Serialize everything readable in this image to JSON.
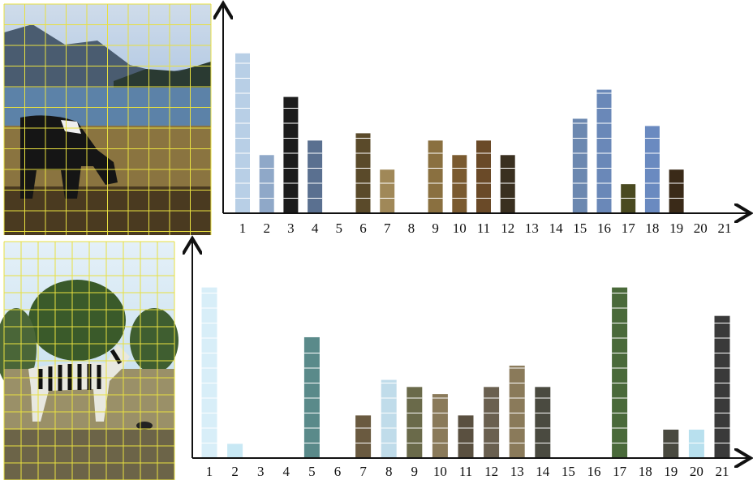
{
  "chart_data": [
    {
      "type": "bar",
      "categories": [
        "1",
        "2",
        "3",
        "4",
        "5",
        "6",
        "7",
        "8",
        "9",
        "10",
        "11",
        "12",
        "13",
        "14",
        "15",
        "16",
        "17",
        "18",
        "19",
        "20",
        "21"
      ],
      "values": [
        11,
        4,
        8,
        5,
        0,
        5.5,
        3,
        0,
        5,
        4,
        5,
        4,
        0,
        0,
        6.5,
        8.5,
        2,
        6,
        3,
        0,
        0
      ],
      "colors": [
        "#b8cfe6",
        "#8fa8c8",
        "#1c1c1c",
        "#5a7090",
        "#888888",
        "#5a4a2a",
        "#a08858",
        "#888888",
        "#8a7040",
        "#7a5a30",
        "#6a4a28",
        "#3a3020",
        "#888888",
        "#888888",
        "#6c88b0",
        "#6a88b8",
        "#4a4a20",
        "#6a8ac0",
        "#3a2a18",
        "#888888",
        "#888888"
      ],
      "ylim": [
        0,
        14
      ]
    },
    {
      "type": "bar",
      "categories": [
        "1",
        "2",
        "3",
        "4",
        "5",
        "6",
        "7",
        "8",
        "9",
        "10",
        "11",
        "12",
        "13",
        "14",
        "15",
        "16",
        "17",
        "18",
        "19",
        "20",
        "21"
      ],
      "values": [
        12,
        1,
        0,
        0,
        8.5,
        0,
        3,
        5.5,
        5,
        4.5,
        3,
        5,
        6.5,
        5,
        0,
        0,
        12,
        0,
        2,
        2,
        10
      ],
      "colors": [
        "#d8eef8",
        "#c8e8f4",
        "#888888",
        "#888888",
        "#5a8a8a",
        "#888888",
        "#6a5a40",
        "#c0dcea",
        "#6a6a4a",
        "#8a7a5a",
        "#5a5040",
        "#6a6050",
        "#8a7a5a",
        "#4a4a40",
        "#888888",
        "#888888",
        "#4a6a3a",
        "#888888",
        "#4a4a40",
        "#b8e0ee",
        "#3a3a3a"
      ],
      "ylim": [
        0,
        15
      ]
    }
  ]
}
